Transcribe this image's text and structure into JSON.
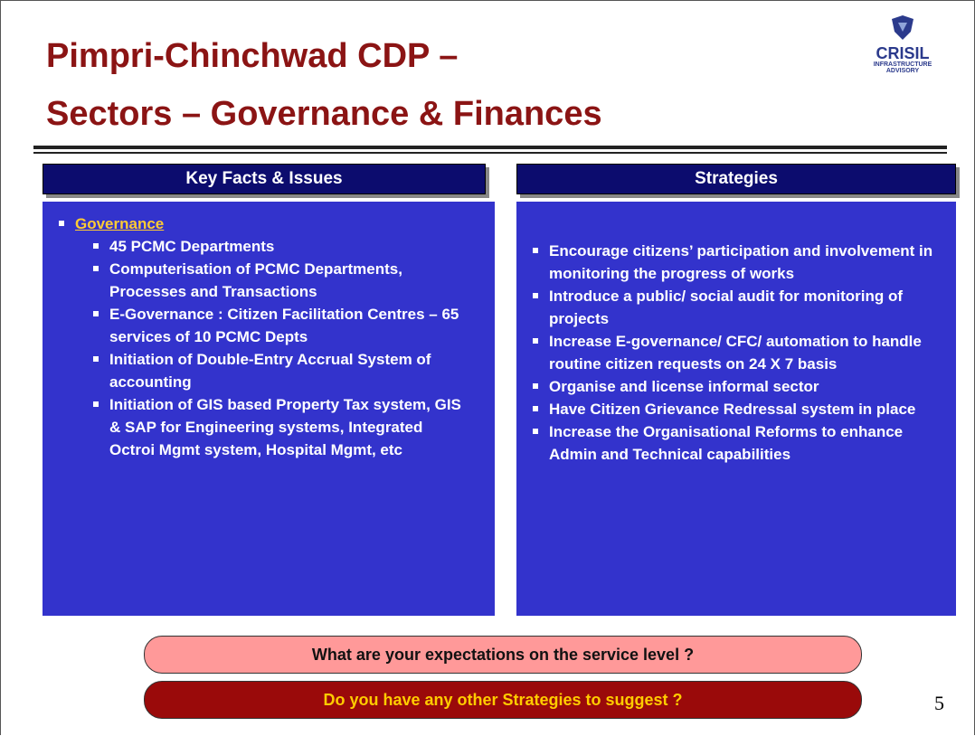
{
  "header": {
    "title_line1": "Pimpri-Chinchwad CDP –",
    "title_line2": "Sectors – Governance & Finances",
    "logo": {
      "name": "CRISIL",
      "line1": "INFRASTRUCTURE",
      "line2": "ADVISORY"
    }
  },
  "left": {
    "heading": "Key Facts & Issues",
    "section": "Governance",
    "items": [
      "45 PCMC Departments",
      "Computerisation of PCMC Departments, Processes and Transactions",
      "E-Governance : Citizen Facilitation Centres – 65 services of 10 PCMC Depts",
      "Initiation of Double-Entry Accrual System of accounting",
      "Initiation of GIS based Property Tax system, GIS & SAP for Engineering systems, Integrated Octroi Mgmt system, Hospital Mgmt, etc"
    ]
  },
  "right": {
    "heading": "Strategies",
    "items": [
      "Encourage citizens’ participation and involvement in monitoring the progress of works",
      "Introduce a public/ social audit for monitoring of projects",
      "Increase E-governance/ CFC/ automation to handle routine citizen requests on 24 X 7 basis",
      "Organise and license informal sector",
      "Have Citizen Grievance Redressal system in place",
      "Increase the Organisational Reforms to enhance Admin and Technical capabilities"
    ]
  },
  "questions": [
    "What are your expectations on the service level ?",
    "Do you have any other Strategies to suggest ?"
  ],
  "page_number": "5"
}
